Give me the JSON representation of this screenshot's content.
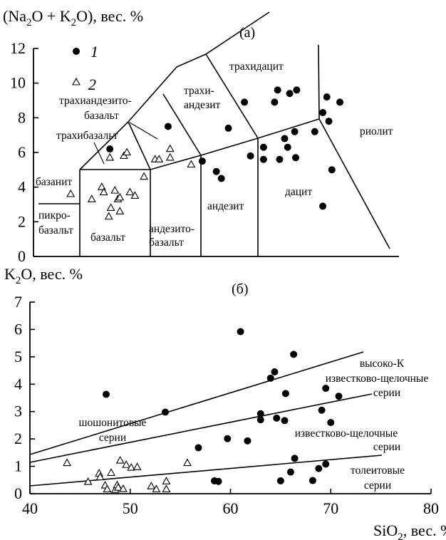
{
  "chart_data": [
    {
      "type": "scatter",
      "panel_label": "(а)",
      "ylabel": "(Na₂O + K₂O), вес. %",
      "xlim": [
        40,
        80
      ],
      "ylim": [
        0,
        12
      ],
      "yticks": [
        0,
        2,
        4,
        6,
        8,
        10,
        12
      ],
      "legend": {
        "placement": "top-left",
        "entries": [
          {
            "marker": "filled-circle",
            "label": "1"
          },
          {
            "marker": "open-triangle",
            "label": "2"
          }
        ]
      },
      "fields": [
        {
          "label": "трахидацит",
          "lines": [
            "трахидацит"
          ]
        },
        {
          "label": "трахиандезито-базальт",
          "lines": [
            "трахиандезито-",
            "базальт"
          ]
        },
        {
          "label": "трахи-андезит",
          "lines": [
            "трахи-",
            "андезит"
          ]
        },
        {
          "label": "трахибазальт",
          "lines": [
            "трахибазальт"
          ]
        },
        {
          "label": "риолит",
          "lines": [
            "риолит"
          ]
        },
        {
          "label": "базанит",
          "lines": [
            "базанит"
          ]
        },
        {
          "label": "дацит",
          "lines": [
            "дацит"
          ]
        },
        {
          "label": "андезит",
          "lines": [
            "андезит"
          ]
        },
        {
          "label": "пикро-базальт",
          "lines": [
            "пикро-",
            "базальт"
          ]
        },
        {
          "label": "базальт",
          "lines": [
            "базальт"
          ]
        },
        {
          "label": "андезито-базальт",
          "lines": [
            "андезито-",
            "базальт"
          ]
        }
      ],
      "series": [
        {
          "name": "1",
          "marker": "filled-circle",
          "points": [
            [
              47.6,
              6.2
            ],
            [
              53.4,
              7.5
            ],
            [
              56.8,
              5.5
            ],
            [
              58.2,
              4.9
            ],
            [
              58.7,
              4.5
            ],
            [
              59.4,
              7.4
            ],
            [
              61.0,
              8.9
            ],
            [
              61.6,
              5.8
            ],
            [
              62.9,
              6.3
            ],
            [
              62.9,
              5.6
            ],
            [
              64.0,
              8.9
            ],
            [
              64.3,
              9.6
            ],
            [
              64.5,
              5.6
            ],
            [
              65.0,
              6.8
            ],
            [
              65.3,
              6.3
            ],
            [
              65.5,
              9.4
            ],
            [
              66.0,
              7.2
            ],
            [
              66.1,
              5.7
            ],
            [
              66.2,
              9.6
            ],
            [
              68.0,
              7.2
            ],
            [
              68.8,
              8.3
            ],
            [
              68.8,
              2.9
            ],
            [
              69.2,
              9.2
            ],
            [
              69.4,
              7.8
            ],
            [
              69.7,
              5.0
            ],
            [
              70.5,
              8.9
            ]
          ]
        },
        {
          "name": "2",
          "marker": "open-triangle",
          "points": [
            [
              43.7,
              3.6
            ],
            [
              45.8,
              3.3
            ],
            [
              46.8,
              4.0
            ],
            [
              47.0,
              3.7
            ],
            [
              47.5,
              2.3
            ],
            [
              47.6,
              5.7
            ],
            [
              47.7,
              2.8
            ],
            [
              48.1,
              3.8
            ],
            [
              48.4,
              3.3
            ],
            [
              48.6,
              2.6
            ],
            [
              48.6,
              3.4
            ],
            [
              49.0,
              5.8
            ],
            [
              49.3,
              6.0
            ],
            [
              49.6,
              3.7
            ],
            [
              50.1,
              3.5
            ],
            [
              51.0,
              4.6
            ],
            [
              52.1,
              5.6
            ],
            [
              52.5,
              5.6
            ],
            [
              53.6,
              6.2
            ],
            [
              53.6,
              5.7
            ],
            [
              55.7,
              5.3
            ]
          ]
        }
      ]
    },
    {
      "type": "scatter",
      "panel_label": "(б)",
      "ylabel": "K₂O, вес. %",
      "xlabel": "SiO₂, вес. %",
      "xlim": [
        40,
        80
      ],
      "ylim": [
        0,
        7
      ],
      "xticks": [
        40,
        50,
        60,
        70,
        80
      ],
      "yticks": [
        0,
        1,
        2,
        3,
        4,
        5,
        6,
        7
      ],
      "series_labels": [
        {
          "label": "высоко-К известково-щелочные серии",
          "lines": [
            "высоко-К",
            "известково-щелочные",
            "серии"
          ]
        },
        {
          "label": "шошонитовые серии",
          "lines": [
            "шошонитовые",
            "серии"
          ]
        },
        {
          "label": "известково-щелочные серии",
          "lines": [
            "известково-щелочные",
            "серии"
          ]
        },
        {
          "label": "толеитовые серии",
          "lines": [
            "толеитовые",
            "серии"
          ]
        }
      ],
      "series": [
        {
          "name": "1",
          "marker": "filled-circle",
          "points": [
            [
              47.6,
              3.63
            ],
            [
              53.5,
              2.98
            ],
            [
              56.8,
              1.68
            ],
            [
              58.4,
              0.47
            ],
            [
              58.8,
              0.45
            ],
            [
              59.7,
              2.01
            ],
            [
              61.0,
              5.92
            ],
            [
              61.7,
              1.93
            ],
            [
              63.0,
              2.92
            ],
            [
              63.0,
              2.7
            ],
            [
              64.0,
              4.22
            ],
            [
              64.4,
              4.45
            ],
            [
              64.6,
              2.76
            ],
            [
              65.0,
              0.47
            ],
            [
              65.4,
              2.67
            ],
            [
              65.5,
              3.66
            ],
            [
              66.0,
              0.79
            ],
            [
              66.3,
              5.09
            ],
            [
              66.4,
              1.29
            ],
            [
              68.2,
              0.48
            ],
            [
              68.8,
              0.92
            ],
            [
              69.1,
              3.05
            ],
            [
              69.5,
              3.85
            ],
            [
              69.5,
              1.08
            ],
            [
              70.0,
              2.6
            ],
            [
              70.8,
              3.56
            ]
          ]
        },
        {
          "name": "2",
          "marker": "open-triangle",
          "points": [
            [
              43.7,
              1.12
            ],
            [
              45.8,
              0.43
            ],
            [
              46.9,
              0.74
            ],
            [
              47.0,
              0.6
            ],
            [
              47.5,
              0.3
            ],
            [
              47.7,
              0.16
            ],
            [
              48.1,
              0.76
            ],
            [
              48.5,
              0.14
            ],
            [
              48.7,
              0.31
            ],
            [
              48.8,
              0.22
            ],
            [
              49.0,
              1.21
            ],
            [
              49.3,
              0.17
            ],
            [
              49.6,
              1.05
            ],
            [
              50.1,
              0.95
            ],
            [
              50.7,
              0.97
            ],
            [
              52.1,
              0.27
            ],
            [
              52.6,
              0.16
            ],
            [
              53.6,
              0.16
            ],
            [
              53.6,
              0.45
            ],
            [
              55.7,
              1.12
            ]
          ]
        }
      ]
    }
  ]
}
